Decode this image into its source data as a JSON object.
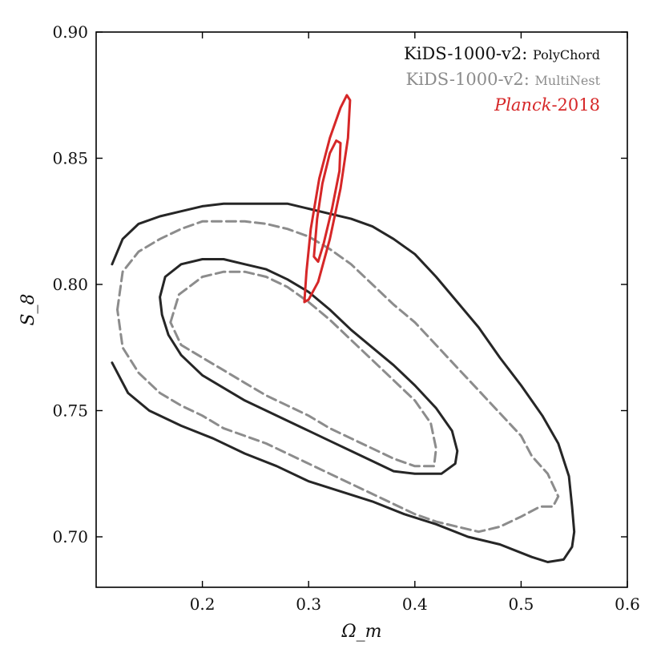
{
  "chart_data": {
    "type": "contour",
    "xlabel": "Ω_m",
    "ylabel": "S_8",
    "xlim": [
      0.1,
      0.6
    ],
    "ylim": [
      0.68,
      0.9
    ],
    "xticks": [
      0.2,
      0.3,
      0.4,
      0.5,
      0.6
    ],
    "xtick_labels": [
      "0.2",
      "0.3",
      "0.4",
      "0.5",
      "0.6"
    ],
    "yticks": [
      0.7,
      0.75,
      0.8,
      0.85,
      0.9
    ],
    "ytick_labels": [
      "0.70",
      "0.75",
      "0.80",
      "0.85",
      "0.90"
    ],
    "legend_position": "top-right",
    "series": [
      {
        "name": "KiDS-1000-v2: PolyChord",
        "legend_prefix": "KiDS-1000-v2: ",
        "legend_sc": "PolyChord",
        "color": "#262626",
        "style": "solid",
        "contours": [
          {
            "level": "68%",
            "closed": true,
            "points": [
              [
                0.16,
                0.795
              ],
              [
                0.165,
                0.803
              ],
              [
                0.18,
                0.808
              ],
              [
                0.2,
                0.81
              ],
              [
                0.22,
                0.81
              ],
              [
                0.24,
                0.808
              ],
              [
                0.26,
                0.806
              ],
              [
                0.28,
                0.802
              ],
              [
                0.3,
                0.797
              ],
              [
                0.32,
                0.79
              ],
              [
                0.34,
                0.782
              ],
              [
                0.36,
                0.775
              ],
              [
                0.38,
                0.768
              ],
              [
                0.4,
                0.76
              ],
              [
                0.42,
                0.751
              ],
              [
                0.435,
                0.742
              ],
              [
                0.44,
                0.734
              ],
              [
                0.438,
                0.729
              ],
              [
                0.425,
                0.725
              ],
              [
                0.4,
                0.725
              ],
              [
                0.38,
                0.726
              ],
              [
                0.36,
                0.73
              ],
              [
                0.34,
                0.734
              ],
              [
                0.32,
                0.738
              ],
              [
                0.3,
                0.742
              ],
              [
                0.28,
                0.746
              ],
              [
                0.26,
                0.75
              ],
              [
                0.24,
                0.754
              ],
              [
                0.22,
                0.759
              ],
              [
                0.2,
                0.764
              ],
              [
                0.18,
                0.772
              ],
              [
                0.168,
                0.78
              ],
              [
                0.162,
                0.788
              ]
            ]
          },
          {
            "level": "95%",
            "closed": false,
            "points": [
              [
                0.115,
                0.769
              ],
              [
                0.13,
                0.757
              ],
              [
                0.15,
                0.75
              ],
              [
                0.18,
                0.744
              ],
              [
                0.21,
                0.739
              ],
              [
                0.24,
                0.733
              ],
              [
                0.27,
                0.728
              ],
              [
                0.3,
                0.722
              ],
              [
                0.33,
                0.718
              ],
              [
                0.36,
                0.714
              ],
              [
                0.39,
                0.709
              ],
              [
                0.42,
                0.705
              ],
              [
                0.45,
                0.7
              ],
              [
                0.48,
                0.697
              ],
              [
                0.51,
                0.692
              ],
              [
                0.525,
                0.69
              ],
              [
                0.54,
                0.691
              ],
              [
                0.548,
                0.696
              ],
              [
                0.55,
                0.702
              ],
              [
                0.548,
                0.712
              ],
              [
                0.545,
                0.724
              ],
              [
                0.535,
                0.737
              ],
              [
                0.52,
                0.748
              ],
              [
                0.5,
                0.76
              ],
              [
                0.48,
                0.771
              ],
              [
                0.46,
                0.783
              ],
              [
                0.44,
                0.793
              ],
              [
                0.42,
                0.803
              ],
              [
                0.4,
                0.812
              ],
              [
                0.38,
                0.818
              ],
              [
                0.36,
                0.823
              ],
              [
                0.34,
                0.826
              ],
              [
                0.32,
                0.828
              ],
              [
                0.3,
                0.83
              ],
              [
                0.28,
                0.832
              ],
              [
                0.26,
                0.832
              ],
              [
                0.24,
                0.832
              ],
              [
                0.22,
                0.832
              ],
              [
                0.2,
                0.831
              ],
              [
                0.18,
                0.829
              ],
              [
                0.16,
                0.827
              ],
              [
                0.14,
                0.824
              ],
              [
                0.125,
                0.818
              ],
              [
                0.115,
                0.808
              ]
            ]
          }
        ]
      },
      {
        "name": "KiDS-1000-v2: MultiNest",
        "legend_prefix": "KiDS-1000-v2: ",
        "legend_sc": "MultiNest",
        "color": "#8c8c8c",
        "style": "dashed",
        "contours": [
          {
            "level": "68%",
            "closed": true,
            "points": [
              [
                0.17,
                0.785
              ],
              [
                0.178,
                0.796
              ],
              [
                0.2,
                0.803
              ],
              [
                0.22,
                0.805
              ],
              [
                0.24,
                0.805
              ],
              [
                0.26,
                0.803
              ],
              [
                0.28,
                0.799
              ],
              [
                0.3,
                0.793
              ],
              [
                0.32,
                0.786
              ],
              [
                0.34,
                0.778
              ],
              [
                0.36,
                0.77
              ],
              [
                0.38,
                0.762
              ],
              [
                0.4,
                0.754
              ],
              [
                0.415,
                0.745
              ],
              [
                0.42,
                0.735
              ],
              [
                0.418,
                0.728
              ],
              [
                0.4,
                0.728
              ],
              [
                0.38,
                0.731
              ],
              [
                0.36,
                0.735
              ],
              [
                0.34,
                0.739
              ],
              [
                0.32,
                0.743
              ],
              [
                0.3,
                0.748
              ],
              [
                0.28,
                0.752
              ],
              [
                0.26,
                0.756
              ],
              [
                0.24,
                0.761
              ],
              [
                0.22,
                0.766
              ],
              [
                0.2,
                0.771
              ],
              [
                0.18,
                0.776
              ]
            ]
          },
          {
            "level": "95%",
            "closed": true,
            "points": [
              [
                0.12,
                0.79
              ],
              [
                0.125,
                0.805
              ],
              [
                0.14,
                0.813
              ],
              [
                0.16,
                0.818
              ],
              [
                0.18,
                0.822
              ],
              [
                0.2,
                0.825
              ],
              [
                0.22,
                0.825
              ],
              [
                0.24,
                0.825
              ],
              [
                0.26,
                0.824
              ],
              [
                0.28,
                0.822
              ],
              [
                0.3,
                0.819
              ],
              [
                0.32,
                0.814
              ],
              [
                0.34,
                0.808
              ],
              [
                0.36,
                0.8
              ],
              [
                0.38,
                0.792
              ],
              [
                0.4,
                0.785
              ],
              [
                0.42,
                0.776
              ],
              [
                0.44,
                0.767
              ],
              [
                0.46,
                0.758
              ],
              [
                0.48,
                0.749
              ],
              [
                0.5,
                0.74
              ],
              [
                0.51,
                0.732
              ],
              [
                0.525,
                0.725
              ],
              [
                0.535,
                0.716
              ],
              [
                0.53,
                0.712
              ],
              [
                0.518,
                0.712
              ],
              [
                0.5,
                0.708
              ],
              [
                0.48,
                0.704
              ],
              [
                0.46,
                0.702
              ],
              [
                0.44,
                0.704
              ],
              [
                0.42,
                0.706
              ],
              [
                0.4,
                0.709
              ],
              [
                0.38,
                0.713
              ],
              [
                0.36,
                0.717
              ],
              [
                0.34,
                0.721
              ],
              [
                0.32,
                0.725
              ],
              [
                0.3,
                0.729
              ],
              [
                0.28,
                0.733
              ],
              [
                0.26,
                0.737
              ],
              [
                0.24,
                0.74
              ],
              [
                0.22,
                0.743
              ],
              [
                0.2,
                0.748
              ],
              [
                0.18,
                0.752
              ],
              [
                0.16,
                0.757
              ],
              [
                0.14,
                0.765
              ],
              [
                0.125,
                0.775
              ]
            ]
          }
        ]
      },
      {
        "name": "Planck-2018",
        "legend_italic": "Planck",
        "legend_suffix": "-2018",
        "color": "#d62728",
        "style": "solid",
        "contours": [
          {
            "level": "68%",
            "closed": true,
            "points": [
              [
                0.305,
                0.811
              ],
              [
                0.308,
                0.826
              ],
              [
                0.313,
                0.84
              ],
              [
                0.32,
                0.852
              ],
              [
                0.326,
                0.857
              ],
              [
                0.33,
                0.856
              ],
              [
                0.329,
                0.845
              ],
              [
                0.322,
                0.83
              ],
              [
                0.314,
                0.816
              ],
              [
                0.309,
                0.809
              ]
            ]
          },
          {
            "level": "95%",
            "closed": true,
            "points": [
              [
                0.296,
                0.793
              ],
              [
                0.298,
                0.805
              ],
              [
                0.302,
                0.822
              ],
              [
                0.31,
                0.842
              ],
              [
                0.32,
                0.858
              ],
              [
                0.33,
                0.87
              ],
              [
                0.336,
                0.875
              ],
              [
                0.339,
                0.873
              ],
              [
                0.337,
                0.858
              ],
              [
                0.33,
                0.838
              ],
              [
                0.32,
                0.818
              ],
              [
                0.309,
                0.801
              ],
              [
                0.3,
                0.794
              ]
            ]
          }
        ]
      }
    ]
  }
}
